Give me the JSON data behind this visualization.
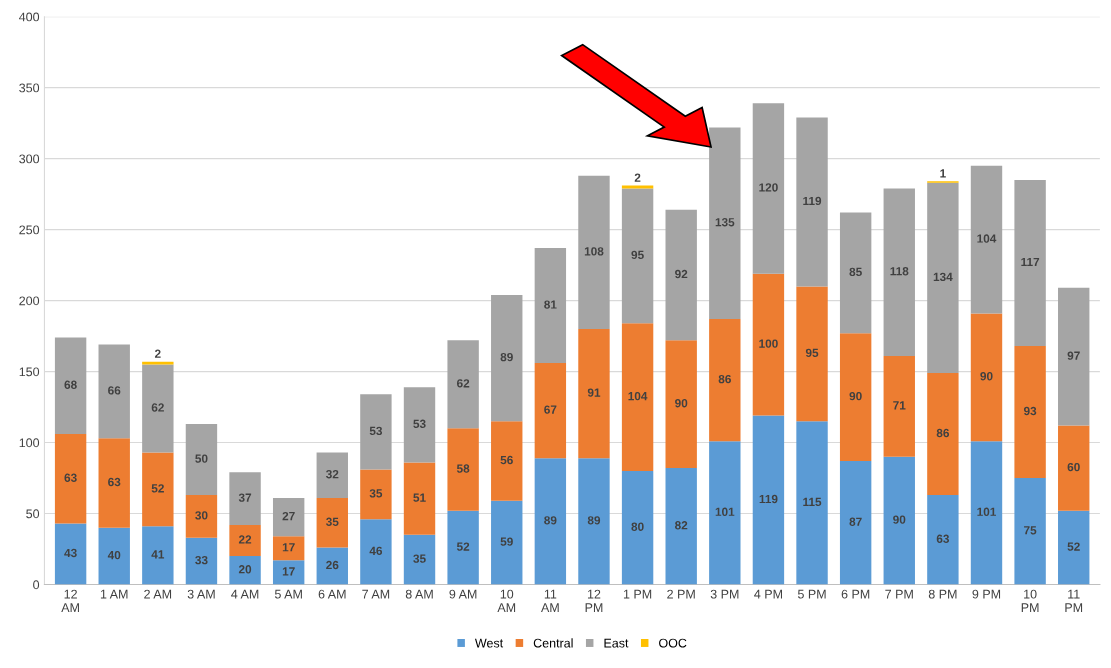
{
  "chart_data": {
    "type": "bar",
    "stacked": true,
    "data_labels": true,
    "grid": "y",
    "legend": "bottom",
    "categories": [
      "12 AM",
      "1 AM",
      "2 AM",
      "3 AM",
      "4 AM",
      "5 AM",
      "6 AM",
      "7 AM",
      "8 AM",
      "9 AM",
      "10 AM",
      "11 AM",
      "12 PM",
      "1 PM",
      "2 PM",
      "3 PM",
      "4 PM",
      "5 PM",
      "6 PM",
      "7 PM",
      "8 PM",
      "9 PM",
      "10 PM",
      "11 PM"
    ],
    "ylim": [
      0,
      400
    ],
    "yticks": [
      0,
      50,
      100,
      150,
      200,
      250,
      300,
      350,
      400
    ],
    "series": [
      {
        "name": "West",
        "color": "#5b9bd5",
        "values": [
          43,
          40,
          41,
          33,
          20,
          17,
          26,
          46,
          35,
          52,
          59,
          89,
          89,
          80,
          82,
          101,
          119,
          115,
          87,
          90,
          63,
          101,
          75,
          52
        ]
      },
      {
        "name": "Central",
        "color": "#ed7d31",
        "values": [
          63,
          63,
          52,
          30,
          22,
          17,
          35,
          35,
          51,
          58,
          56,
          67,
          91,
          104,
          90,
          86,
          100,
          95,
          90,
          71,
          86,
          90,
          93,
          60
        ]
      },
      {
        "name": "East",
        "color": "#a5a5a5",
        "values": [
          68,
          66,
          62,
          50,
          37,
          27,
          32,
          53,
          53,
          62,
          89,
          81,
          108,
          95,
          92,
          135,
          120,
          119,
          85,
          118,
          134,
          104,
          117,
          97
        ]
      },
      {
        "name": "OOC",
        "color": "#ffc000",
        "values": [
          null,
          null,
          2,
          null,
          null,
          null,
          null,
          null,
          null,
          null,
          null,
          null,
          null,
          2,
          null,
          null,
          null,
          null,
          null,
          null,
          1,
          null,
          null,
          null
        ]
      }
    ]
  }
}
